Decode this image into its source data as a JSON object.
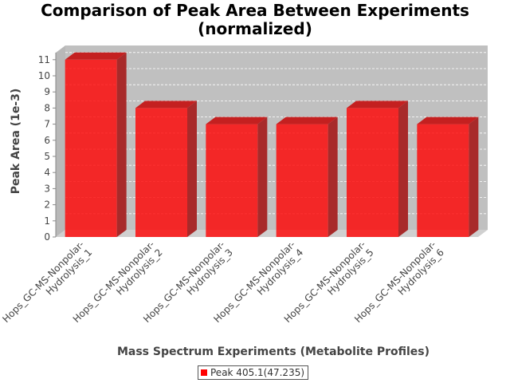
{
  "chart_data": {
    "type": "bar",
    "title_line1": "Comparison of Peak Area Between Experiments",
    "title_line2": "(normalized)",
    "xlabel": "Mass Spectrum Experiments (Metabolite Profiles)",
    "ylabel": "Peak Area (1e-3)",
    "categories": [
      [
        "Hops_GC-MS-Nonpolar-",
        "Hydrolysis_1"
      ],
      [
        "Hops_GC-MS-Nonpolar-",
        "Hydrolysis_2"
      ],
      [
        "Hops_GC-MS-Nonpolar-",
        "Hydrolysis_3"
      ],
      [
        "Hops_GC-MS-Nonpolar-",
        "Hydrolysis_4"
      ],
      [
        "Hops_GC-MS-Nonpolar-",
        "Hydrolysis_5"
      ],
      [
        "Hops_GC-MS-Nonpolar-",
        "Hydrolysis_6"
      ]
    ],
    "series": [
      {
        "name": "Peak 405.1(47.235)",
        "values": [
          11,
          8,
          7,
          7,
          8,
          7
        ],
        "color": "#ff0000"
      }
    ],
    "ylim": [
      0,
      11
    ],
    "yticks": [
      0,
      1,
      2,
      3,
      4,
      5,
      6,
      7,
      8,
      9,
      10,
      11
    ],
    "grid": true,
    "legend_position": "bottom",
    "plot_background": "#c0c0c0"
  }
}
